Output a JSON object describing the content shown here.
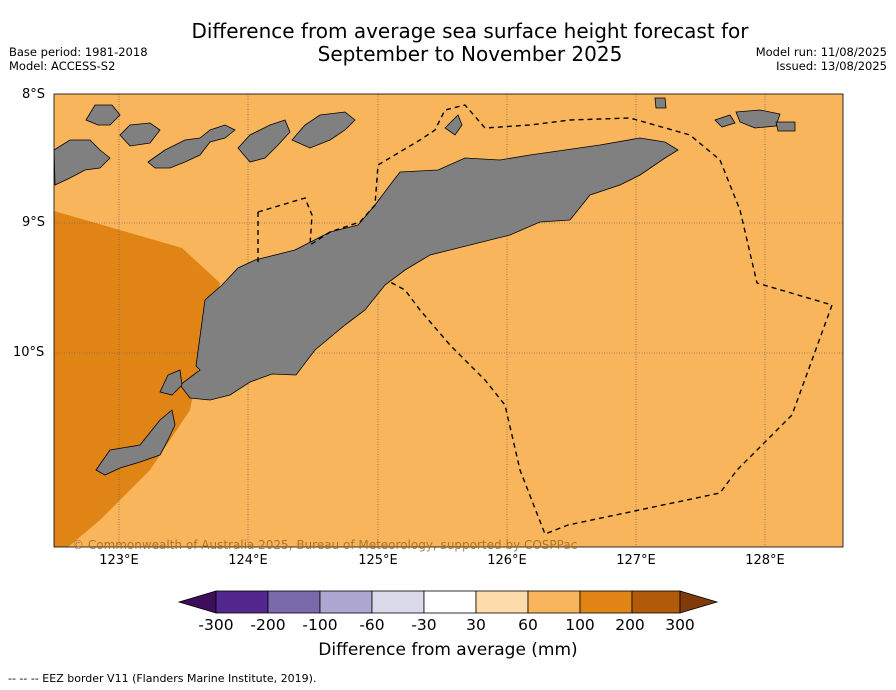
{
  "title_line1": "Difference from average sea surface height forecast for",
  "title_line2": "September to November 2025",
  "meta_left": {
    "base_period": "Base period: 1981-2018",
    "model": "Model: ACCESS-S2"
  },
  "meta_right": {
    "model_run": "Model run: 11/08/2025",
    "issued": "Issued: 13/08/2025"
  },
  "map": {
    "lat_labels": [
      "8°S",
      "9°S",
      "10°S"
    ],
    "lon_labels": [
      "123°E",
      "124°E",
      "125°E",
      "126°E",
      "127°E",
      "128°E"
    ],
    "copyright": "© Commonwealth of Australia 2025, Bureau of Meteorology, supported by COSPPac",
    "colors": {
      "band_60_100": "#f9b55c",
      "band_100_200": "#e08416",
      "land": "#808080"
    }
  },
  "colorbar": {
    "ticks": [
      "-300",
      "-200",
      "-100",
      "-60",
      "-30",
      "30",
      "60",
      "100",
      "200",
      "300"
    ],
    "colors": [
      "#3d0e5a",
      "#54278f",
      "#7a6aac",
      "#ada7d1",
      "#dadaeb",
      "#ffffff",
      "#fedcac",
      "#f9b55c",
      "#e08416",
      "#b15a0a",
      "#7f3b08"
    ],
    "label": "Difference from average (mm)"
  },
  "footnote": "--  --  -- EEZ border V11 (Flanders Marine Institute, 2019)."
}
